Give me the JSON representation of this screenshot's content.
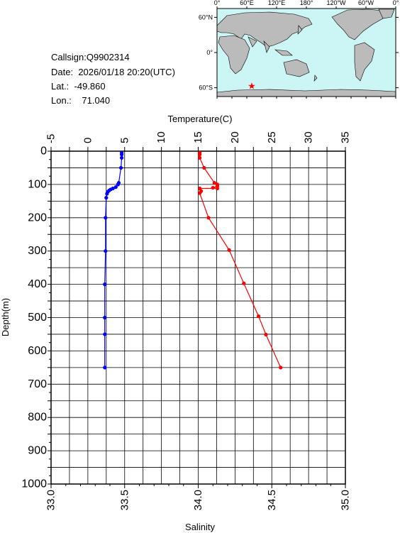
{
  "header": {
    "callsign_label": "Callsign:",
    "callsign": "Q9902314",
    "date_label": "Date:",
    "date": "2026/01/18 20:20(UTC)",
    "lat_label": "Lat.:",
    "lat": "-49.860",
    "lon_label": "Lon.:",
    "lon": "71.040"
  },
  "map": {
    "lon_ticks": [
      "0°",
      "60°E",
      "120°E",
      "180°",
      "120°W",
      "60°W",
      "0°"
    ],
    "lat_ticks": [
      "60°N",
      "0°",
      "60°S"
    ],
    "ocean_color": "#ccf5f5",
    "land_color": "#bbbbbb",
    "marker_icon": "star-icon",
    "marker_color": "#ff0000",
    "marker_lat": -49.86,
    "marker_lon": 71.04
  },
  "chart_data": {
    "type": "line",
    "ylabel": "Depth(m)",
    "ylim": [
      1000,
      0
    ],
    "y_ticks": [
      "0",
      "100",
      "200",
      "300",
      "400",
      "500",
      "600",
      "700",
      "800",
      "900",
      "1000"
    ],
    "top_axis": {
      "label": "Temperature(C)",
      "range": [
        -5,
        35
      ],
      "ticks": [
        "-5",
        "0",
        "5",
        "10",
        "15",
        "20",
        "25",
        "30",
        "35"
      ]
    },
    "bottom_axis": {
      "label": "Salinity",
      "range": [
        33.0,
        35.0
      ],
      "ticks": [
        "33.0",
        "33.5",
        "34.0",
        "34.5",
        "35.0"
      ]
    },
    "grid": true,
    "series": [
      {
        "axis": "temperature",
        "color": "#0000ff",
        "points": [
          [
            4.6,
            5
          ],
          [
            4.6,
            10
          ],
          [
            4.6,
            20
          ],
          [
            4.5,
            50
          ],
          [
            4.2,
            95
          ],
          [
            4.1,
            100
          ],
          [
            3.8,
            108
          ],
          [
            3.4,
            112
          ],
          [
            3.1,
            115
          ],
          [
            2.9,
            118
          ],
          [
            2.7,
            122
          ],
          [
            2.6,
            128
          ],
          [
            2.5,
            140
          ],
          [
            2.4,
            200
          ],
          [
            2.4,
            300
          ],
          [
            2.3,
            400
          ],
          [
            2.3,
            500
          ],
          [
            2.3,
            550
          ],
          [
            2.3,
            650
          ]
        ]
      },
      {
        "axis": "salinity",
        "color": "#ff0000",
        "points": [
          [
            34.01,
            5
          ],
          [
            34.01,
            10
          ],
          [
            34.01,
            20
          ],
          [
            34.04,
            50
          ],
          [
            34.11,
            95
          ],
          [
            34.13,
            100
          ],
          [
            34.13,
            105
          ],
          [
            34.1,
            110
          ],
          [
            34.13,
            112
          ],
          [
            34.01,
            112
          ],
          [
            34.02,
            120
          ],
          [
            34.01,
            126
          ],
          [
            34.07,
            200
          ],
          [
            34.21,
            297
          ],
          [
            34.31,
            397
          ],
          [
            34.41,
            496
          ],
          [
            34.46,
            551
          ],
          [
            34.56,
            650
          ]
        ]
      }
    ]
  }
}
